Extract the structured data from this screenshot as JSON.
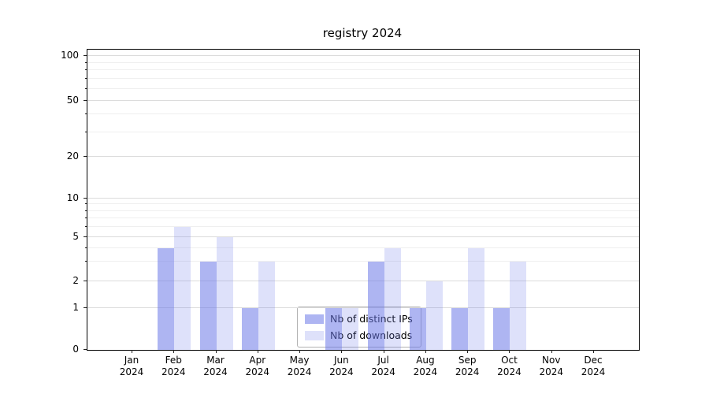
{
  "chart_data": {
    "type": "bar",
    "title": "registry 2024",
    "categories": [
      "Jan 2024",
      "Feb 2024",
      "Mar 2024",
      "Apr 2024",
      "May 2024",
      "Jun 2024",
      "Jul 2024",
      "Aug 2024",
      "Sep 2024",
      "Oct 2024",
      "Nov 2024",
      "Dec 2024"
    ],
    "series": [
      {
        "name": "Nb of distinct IPs",
        "color": "rgba(107,120,232,0.55)",
        "values": [
          0,
          4,
          3,
          1,
          0,
          1,
          3,
          1,
          1,
          1,
          0,
          0
        ]
      },
      {
        "name": "Nb of downloads",
        "color": "rgba(107,120,232,0.22)",
        "values": [
          0,
          6,
          5,
          3,
          0,
          1,
          4,
          2,
          4,
          3,
          0,
          0
        ]
      }
    ],
    "yscale": "symlog",
    "yticks": [
      0,
      1,
      2,
      5,
      10,
      20,
      50,
      100
    ],
    "minor_yticks": [
      3,
      4,
      6,
      7,
      8,
      9,
      30,
      40,
      60,
      70,
      80,
      90
    ],
    "ylim": [
      0,
      120
    ],
    "grid": "on",
    "legend_position": "lower center",
    "gridline_major_color": "#dcdcdc",
    "gridline_minor_color": "#efefef"
  }
}
